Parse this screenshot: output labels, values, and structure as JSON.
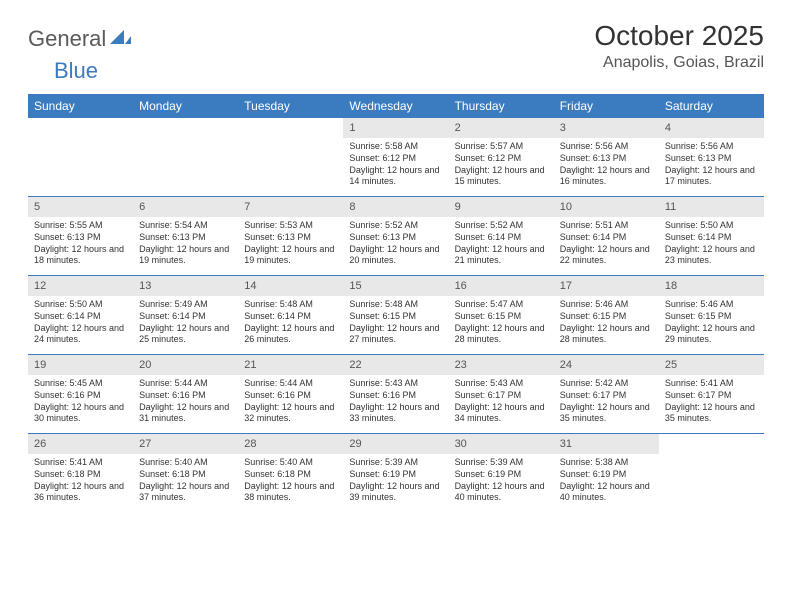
{
  "logo": {
    "text1": "General",
    "text2": "Blue"
  },
  "title": "October 2025",
  "location": "Anapolis, Goias, Brazil",
  "colors": {
    "header_bg": "#3b7bbf",
    "header_text": "#ffffff",
    "daynum_bg": "#e8e8e8",
    "text": "#333333",
    "logo_gray": "#5a5a5a",
    "logo_blue": "#3b7bbf",
    "page_bg": "#ffffff",
    "row_border": "#3b7bbf"
  },
  "fonts": {
    "title_size": 28,
    "location_size": 16,
    "dayheader_size": 12,
    "daynum_size": 11,
    "body_size": 9,
    "logo_size": 22
  },
  "day_labels": [
    "Sunday",
    "Monday",
    "Tuesday",
    "Wednesday",
    "Thursday",
    "Friday",
    "Saturday"
  ],
  "weeks": [
    [
      {
        "n": "",
        "empty": true
      },
      {
        "n": "",
        "empty": true
      },
      {
        "n": "",
        "empty": true
      },
      {
        "n": "1",
        "sr": "5:58 AM",
        "ss": "6:12 PM",
        "dl": "12 hours and 14 minutes."
      },
      {
        "n": "2",
        "sr": "5:57 AM",
        "ss": "6:12 PM",
        "dl": "12 hours and 15 minutes."
      },
      {
        "n": "3",
        "sr": "5:56 AM",
        "ss": "6:13 PM",
        "dl": "12 hours and 16 minutes."
      },
      {
        "n": "4",
        "sr": "5:56 AM",
        "ss": "6:13 PM",
        "dl": "12 hours and 17 minutes."
      }
    ],
    [
      {
        "n": "5",
        "sr": "5:55 AM",
        "ss": "6:13 PM",
        "dl": "12 hours and 18 minutes."
      },
      {
        "n": "6",
        "sr": "5:54 AM",
        "ss": "6:13 PM",
        "dl": "12 hours and 19 minutes."
      },
      {
        "n": "7",
        "sr": "5:53 AM",
        "ss": "6:13 PM",
        "dl": "12 hours and 19 minutes."
      },
      {
        "n": "8",
        "sr": "5:52 AM",
        "ss": "6:13 PM",
        "dl": "12 hours and 20 minutes."
      },
      {
        "n": "9",
        "sr": "5:52 AM",
        "ss": "6:14 PM",
        "dl": "12 hours and 21 minutes."
      },
      {
        "n": "10",
        "sr": "5:51 AM",
        "ss": "6:14 PM",
        "dl": "12 hours and 22 minutes."
      },
      {
        "n": "11",
        "sr": "5:50 AM",
        "ss": "6:14 PM",
        "dl": "12 hours and 23 minutes."
      }
    ],
    [
      {
        "n": "12",
        "sr": "5:50 AM",
        "ss": "6:14 PM",
        "dl": "12 hours and 24 minutes."
      },
      {
        "n": "13",
        "sr": "5:49 AM",
        "ss": "6:14 PM",
        "dl": "12 hours and 25 minutes."
      },
      {
        "n": "14",
        "sr": "5:48 AM",
        "ss": "6:14 PM",
        "dl": "12 hours and 26 minutes."
      },
      {
        "n": "15",
        "sr": "5:48 AM",
        "ss": "6:15 PM",
        "dl": "12 hours and 27 minutes."
      },
      {
        "n": "16",
        "sr": "5:47 AM",
        "ss": "6:15 PM",
        "dl": "12 hours and 28 minutes."
      },
      {
        "n": "17",
        "sr": "5:46 AM",
        "ss": "6:15 PM",
        "dl": "12 hours and 28 minutes."
      },
      {
        "n": "18",
        "sr": "5:46 AM",
        "ss": "6:15 PM",
        "dl": "12 hours and 29 minutes."
      }
    ],
    [
      {
        "n": "19",
        "sr": "5:45 AM",
        "ss": "6:16 PM",
        "dl": "12 hours and 30 minutes."
      },
      {
        "n": "20",
        "sr": "5:44 AM",
        "ss": "6:16 PM",
        "dl": "12 hours and 31 minutes."
      },
      {
        "n": "21",
        "sr": "5:44 AM",
        "ss": "6:16 PM",
        "dl": "12 hours and 32 minutes."
      },
      {
        "n": "22",
        "sr": "5:43 AM",
        "ss": "6:16 PM",
        "dl": "12 hours and 33 minutes."
      },
      {
        "n": "23",
        "sr": "5:43 AM",
        "ss": "6:17 PM",
        "dl": "12 hours and 34 minutes."
      },
      {
        "n": "24",
        "sr": "5:42 AM",
        "ss": "6:17 PM",
        "dl": "12 hours and 35 minutes."
      },
      {
        "n": "25",
        "sr": "5:41 AM",
        "ss": "6:17 PM",
        "dl": "12 hours and 35 minutes."
      }
    ],
    [
      {
        "n": "26",
        "sr": "5:41 AM",
        "ss": "6:18 PM",
        "dl": "12 hours and 36 minutes."
      },
      {
        "n": "27",
        "sr": "5:40 AM",
        "ss": "6:18 PM",
        "dl": "12 hours and 37 minutes."
      },
      {
        "n": "28",
        "sr": "5:40 AM",
        "ss": "6:18 PM",
        "dl": "12 hours and 38 minutes."
      },
      {
        "n": "29",
        "sr": "5:39 AM",
        "ss": "6:19 PM",
        "dl": "12 hours and 39 minutes."
      },
      {
        "n": "30",
        "sr": "5:39 AM",
        "ss": "6:19 PM",
        "dl": "12 hours and 40 minutes."
      },
      {
        "n": "31",
        "sr": "5:38 AM",
        "ss": "6:19 PM",
        "dl": "12 hours and 40 minutes."
      },
      {
        "n": "",
        "empty": true
      }
    ]
  ],
  "labels": {
    "sunrise": "Sunrise:",
    "sunset": "Sunset:",
    "daylight": "Daylight:"
  }
}
